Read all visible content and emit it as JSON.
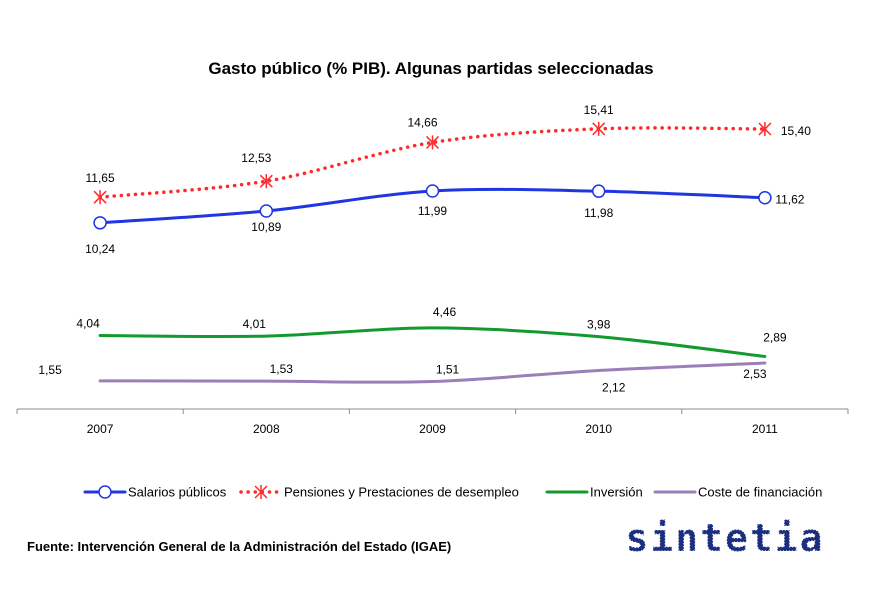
{
  "chart_data": {
    "type": "line",
    "title": "Gasto público (% PIB). Algunas partidas seleccionadas",
    "categories": [
      "2007",
      "2008",
      "2009",
      "2010",
      "2011"
    ],
    "ylim": [
      0,
      16.5
    ],
    "grid": false,
    "legend_position": "bottom",
    "series": [
      {
        "name": "Salarios públicos",
        "values": [
          10.24,
          10.89,
          11.99,
          11.98,
          11.62
        ],
        "labels": [
          "10,24",
          "10,89",
          "11,99",
          "11,98",
          "11,62"
        ],
        "color": "#1f36e0",
        "marker": "circle",
        "style": "solid"
      },
      {
        "name": "Pensiones y Prestaciones de desempleo",
        "values": [
          11.65,
          12.53,
          14.66,
          15.41,
          15.4
        ],
        "labels": [
          "11,65",
          "12,53",
          "14,66",
          "15,41",
          "15,40"
        ],
        "color": "#ff2a2a",
        "marker": "asterisk",
        "style": "dotted"
      },
      {
        "name": "Inversión",
        "values": [
          4.04,
          4.01,
          4.46,
          3.98,
          2.89
        ],
        "labels": [
          "4,04",
          "4,01",
          "4,46",
          "3,98",
          "2,89"
        ],
        "color": "#129a2e",
        "marker": "none",
        "style": "solid"
      },
      {
        "name": "Coste de financiación",
        "values": [
          1.55,
          1.53,
          1.51,
          2.12,
          2.53
        ],
        "labels": [
          "1,55",
          "1,53",
          "1,51",
          "2,12",
          "2,53"
        ],
        "color": "#9b7fb8",
        "marker": "none",
        "style": "solid"
      }
    ]
  },
  "source": "Fuente: Intervención General de la Administración del Estado (IGAE)",
  "logo_text": "sintetia"
}
